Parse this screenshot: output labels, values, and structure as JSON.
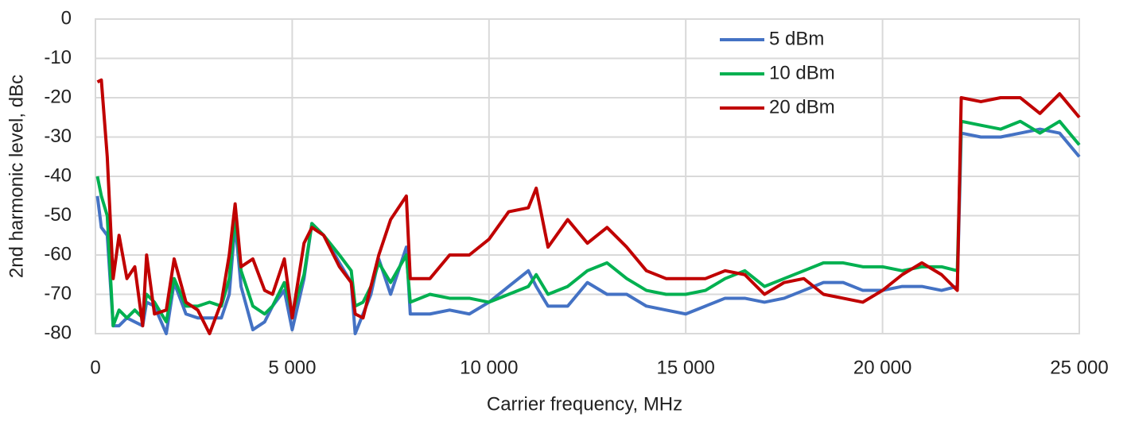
{
  "chart_data": {
    "type": "line",
    "xlabel": "Carrier frequency, MHz",
    "ylabel": "2nd harmonic level, dBc",
    "x": [
      50,
      150,
      300,
      450,
      600,
      800,
      1000,
      1200,
      1300,
      1500,
      1800,
      2000,
      2300,
      2600,
      2900,
      3200,
      3400,
      3550,
      3700,
      4000,
      4300,
      4500,
      4800,
      5000,
      5300,
      5500,
      5800,
      6200,
      6500,
      6600,
      6800,
      7000,
      7200,
      7500,
      7900,
      8000,
      8500,
      9000,
      9500,
      10000,
      10500,
      11000,
      11200,
      11500,
      12000,
      12500,
      13000,
      13500,
      14000,
      14500,
      15000,
      15500,
      16000,
      16500,
      17000,
      17500,
      18000,
      18500,
      19000,
      19500,
      20000,
      20500,
      21000,
      21500,
      21900,
      22000,
      22500,
      23000,
      23500,
      24000,
      24500,
      25000
    ],
    "series": [
      {
        "name": "5 dBm",
        "color": "#4472c4",
        "values": [
          -45,
          -53,
          -55,
          -78,
          -78,
          -76,
          -77,
          -78,
          -72,
          -73,
          -80,
          -67,
          -75,
          -76,
          -76,
          -76,
          -70,
          -52,
          -68,
          -79,
          -77,
          -73,
          -69,
          -79,
          -66,
          -52,
          -55,
          -62,
          -67,
          -80,
          -75,
          -70,
          -61,
          -70,
          -58,
          -75,
          -75,
          -74,
          -75,
          -72,
          -68,
          -64,
          -68,
          -73,
          -73,
          -67,
          -70,
          -70,
          -73,
          -74,
          -75,
          -73,
          -71,
          -71,
          -72,
          -71,
          -69,
          -67,
          -67,
          -69,
          -69,
          -68,
          -68,
          -69,
          -68,
          -29,
          -30,
          -30,
          -29,
          -28,
          -29,
          -35
        ]
      },
      {
        "name": "10 dBm",
        "color": "#00b050",
        "values": [
          -40,
          -45,
          -50,
          -78,
          -74,
          -76,
          -74,
          -76,
          -70,
          -72,
          -77,
          -66,
          -73,
          -73,
          -72,
          -73,
          -66,
          -50,
          -64,
          -73,
          -75,
          -73,
          -67,
          -75,
          -65,
          -52,
          -55,
          -60,
          -64,
          -73,
          -72,
          -68,
          -62,
          -67,
          -60,
          -72,
          -70,
          -71,
          -71,
          -72,
          -70,
          -68,
          -65,
          -70,
          -68,
          -64,
          -62,
          -66,
          -69,
          -70,
          -70,
          -69,
          -66,
          -64,
          -68,
          -66,
          -64,
          -62,
          -62,
          -63,
          -63,
          -64,
          -63,
          -63,
          -64,
          -26,
          -27,
          -28,
          -26,
          -29,
          -26,
          -32
        ]
      },
      {
        "name": "20 dBm",
        "color": "#c00000",
        "values": [
          -16,
          -15.5,
          -35,
          -66,
          -55,
          -66,
          -63,
          -78,
          -60,
          -75,
          -74,
          -61,
          -72,
          -74,
          -80,
          -72,
          -60,
          -47,
          -63,
          -61,
          -69,
          -70,
          -61,
          -76,
          -57,
          -53,
          -55,
          -63,
          -67,
          -75,
          -76,
          -68,
          -60,
          -51,
          -45,
          -66,
          -66,
          -60,
          -60,
          -56,
          -49,
          -48,
          -43,
          -58,
          -51,
          -57,
          -53,
          -58,
          -64,
          -66,
          -66,
          -66,
          -64,
          -65,
          -70,
          -67,
          -66,
          -70,
          -71,
          -72,
          -69,
          -65,
          -62,
          -65,
          -69,
          -20,
          -21,
          -20,
          -20,
          -24,
          -19,
          -25
        ]
      }
    ],
    "xlim": [
      0,
      25000
    ],
    "xticks": [
      0,
      {
        "value": 5000,
        "label": "5 000"
      },
      {
        "value": 10000,
        "label": "10 000"
      },
      {
        "value": 15000,
        "label": "15 000"
      },
      {
        "value": 20000,
        "label": "20 000"
      },
      {
        "value": 25000,
        "label": "25 000"
      }
    ],
    "ylim": [
      -80,
      0
    ],
    "yticks": [
      -80,
      -70,
      -60,
      -50,
      -40,
      -30,
      -20,
      -10,
      0
    ],
    "grid": true,
    "legend": "top-right"
  }
}
